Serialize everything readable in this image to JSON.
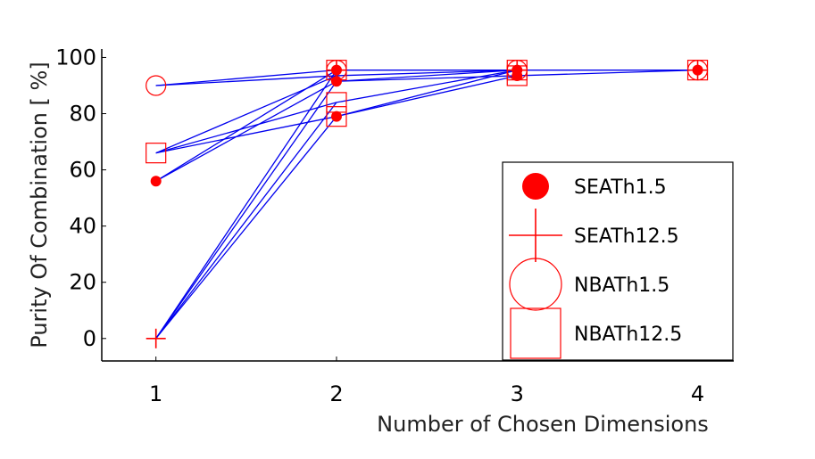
{
  "chart_data": {
    "type": "line",
    "title": "",
    "xlabel": "Number of Chosen Dimensions",
    "ylabel": "Purity Of Combination [ %]",
    "xlim": [
      0.7,
      4.2
    ],
    "ylim": [
      -8,
      103
    ],
    "xticks": [
      1,
      2,
      3,
      4
    ],
    "yticks": [
      0,
      20,
      40,
      60,
      80,
      100
    ],
    "grid": false,
    "legend_position": "bottom-right",
    "line_color": "#0000ee",
    "marker_color": "#ff0000",
    "series": [
      {
        "name": "SEATh1.5",
        "marker": "filled-circle",
        "points": [
          [
            1,
            56
          ],
          [
            2,
            95.5
          ],
          [
            2,
            91.5
          ],
          [
            2,
            79
          ],
          [
            3,
            95.5
          ],
          [
            3,
            93.5
          ],
          [
            4,
            95.5
          ]
        ]
      },
      {
        "name": "SEATh12.5",
        "marker": "plus",
        "points": [
          [
            1,
            0
          ],
          [
            2,
            95.5
          ],
          [
            3,
            95.5
          ],
          [
            4,
            95.5
          ]
        ]
      },
      {
        "name": "NBATh1.5",
        "marker": "open-circle",
        "points": [
          [
            1,
            90
          ],
          [
            2,
            95.5
          ],
          [
            3,
            95.5
          ],
          [
            4,
            95.5
          ]
        ]
      },
      {
        "name": "NBATh12.5",
        "marker": "open-square",
        "points": [
          [
            1,
            66
          ],
          [
            2,
            95.5
          ],
          [
            2,
            84
          ],
          [
            2,
            79
          ],
          [
            3,
            95.5
          ],
          [
            3,
            93.5
          ],
          [
            4,
            95.5
          ]
        ]
      }
    ],
    "segments": [
      [
        [
          1,
          90
        ],
        [
          2,
          95.5
        ]
      ],
      [
        [
          1,
          90
        ],
        [
          2,
          93.5
        ]
      ],
      [
        [
          1,
          66
        ],
        [
          2,
          93.5
        ]
      ],
      [
        [
          1,
          66
        ],
        [
          2,
          84
        ]
      ],
      [
        [
          1,
          66
        ],
        [
          2,
          79
        ]
      ],
      [
        [
          1,
          56
        ],
        [
          2,
          95.5
        ]
      ],
      [
        [
          1,
          56
        ],
        [
          2,
          91.5
        ]
      ],
      [
        [
          1,
          0
        ],
        [
          2,
          95.5
        ]
      ],
      [
        [
          1,
          0
        ],
        [
          2,
          91.5
        ]
      ],
      [
        [
          1,
          0
        ],
        [
          2,
          84
        ]
      ],
      [
        [
          1,
          0
        ],
        [
          2,
          79
        ]
      ],
      [
        [
          2,
          95.5
        ],
        [
          3,
          95.5
        ]
      ],
      [
        [
          2,
          93.5
        ],
        [
          3,
          95.5
        ]
      ],
      [
        [
          2,
          91.5
        ],
        [
          3,
          95.5
        ]
      ],
      [
        [
          2,
          91.5
        ],
        [
          3,
          93.5
        ]
      ],
      [
        [
          2,
          84
        ],
        [
          3,
          95.5
        ]
      ],
      [
        [
          2,
          79
        ],
        [
          3,
          95.5
        ]
      ],
      [
        [
          2,
          79
        ],
        [
          3,
          93.5
        ]
      ],
      [
        [
          2,
          95.5
        ],
        [
          4,
          95.5
        ]
      ],
      [
        [
          3,
          95.5
        ],
        [
          4,
          95.5
        ]
      ],
      [
        [
          3,
          93.5
        ],
        [
          4,
          95.5
        ]
      ]
    ]
  }
}
